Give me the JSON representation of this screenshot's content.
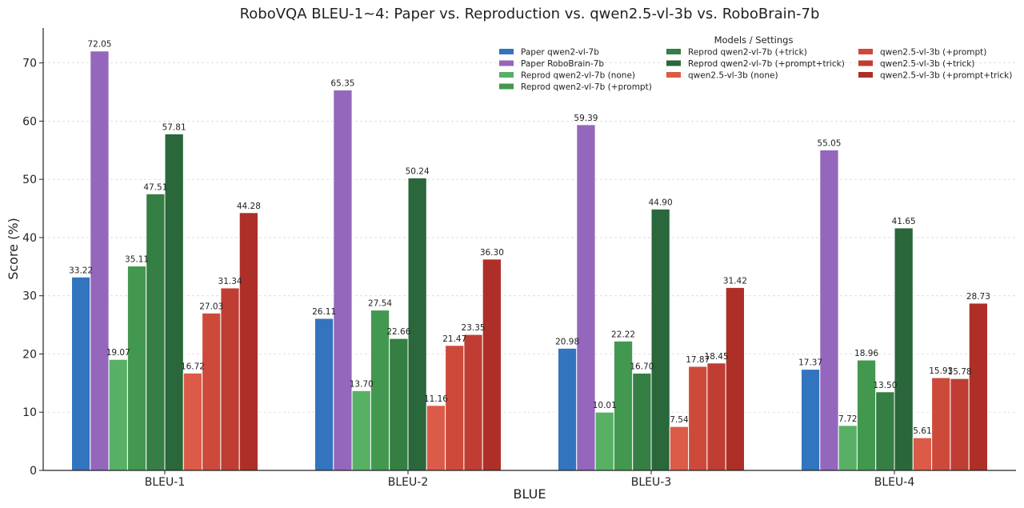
{
  "chart_data": {
    "type": "bar",
    "title": "RoboVQA BLEU-1~4: Paper vs. Reproduction vs. qwen2.5-vl-3b vs. RoboBrain-7b",
    "xlabel": "BLUE",
    "ylabel": "Score (%)",
    "ylim": [
      0,
      76
    ],
    "yticks": [
      0,
      10,
      20,
      30,
      40,
      50,
      60,
      70
    ],
    "grid": true,
    "legend_title": "Models / Settings",
    "legend_position": "top-right",
    "categories": [
      "BLEU-1",
      "BLEU-2",
      "BLEU-3",
      "BLEU-4"
    ],
    "series": [
      {
        "name": "Paper qwen2-vl-7b",
        "color": "#3274be",
        "values": [
          33.22,
          26.11,
          20.98,
          17.37
        ],
        "labels": [
          "33.22",
          "26.11",
          "20.98",
          "17.37"
        ]
      },
      {
        "name": "Paper RoboBrain-7b",
        "color": "#9467bd",
        "values": [
          72.05,
          65.35,
          59.39,
          55.05
        ],
        "labels": [
          "72.05",
          "65.35",
          "59.39",
          "55.05"
        ]
      },
      {
        "name": "Reprod qwen2-vl-7b (none)",
        "color": "#58b065",
        "values": [
          19.07,
          13.7,
          10.01,
          7.72
        ],
        "labels": [
          "19.07",
          "13.70",
          "10.01",
          "7.72"
        ]
      },
      {
        "name": "Reprod qwen2-vl-7b (+prompt)",
        "color": "#439850",
        "values": [
          35.11,
          27.54,
          22.22,
          18.96
        ],
        "labels": [
          "35.11",
          "27.54",
          "22.22",
          "18.96"
        ]
      },
      {
        "name": "Reprod qwen2-vl-7b (+trick)",
        "color": "#357e44",
        "values": [
          47.51,
          22.66,
          16.7,
          13.5
        ],
        "labels": [
          "47.51",
          "22.66",
          "16.70",
          "13.50"
        ]
      },
      {
        "name": "Reprod qwen2-vl-7b (+prompt+trick)",
        "color": "#2a673a",
        "values": [
          57.81,
          50.24,
          44.9,
          41.65
        ],
        "labels": [
          "57.81",
          "50.24",
          "44.90",
          "41.65"
        ]
      },
      {
        "name": "qwen2.5-vl-3b (none)",
        "color": "#db5b48",
        "values": [
          16.72,
          11.16,
          7.54,
          5.61
        ],
        "labels": [
          "16.72",
          "11.16",
          "7.54",
          "5.61"
        ]
      },
      {
        "name": "qwen2.5-vl-3b (+prompt)",
        "color": "#cd4a3b",
        "values": [
          27.03,
          21.47,
          17.87,
          15.93
        ],
        "labels": [
          "27.03",
          "21.47",
          "17.87",
          "15.93"
        ]
      },
      {
        "name": "qwen2.5-vl-3b (+trick)",
        "color": "#c03d33",
        "values": [
          31.34,
          23.35,
          18.45,
          15.78
        ],
        "labels": [
          "31.34",
          "23.35",
          "18.45",
          "15.78"
        ]
      },
      {
        "name": "qwen2.5-vl-3b (+prompt+trick)",
        "color": "#ae2f28",
        "values": [
          44.28,
          36.3,
          31.42,
          28.73
        ],
        "labels": [
          "44.28",
          "36.30",
          "31.42",
          "28.73"
        ]
      }
    ]
  }
}
